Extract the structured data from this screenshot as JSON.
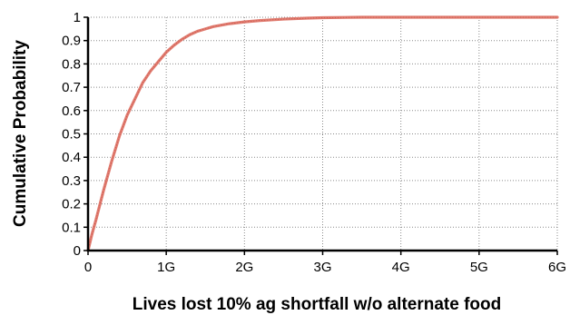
{
  "chart_data": {
    "type": "line",
    "title": "",
    "xlabel": "Lives lost 10% ag shortfall w/o alternate food",
    "ylabel": "Cumulative Probability",
    "xlim": [
      0,
      6000000000
    ],
    "ylim": [
      0,
      1
    ],
    "x_ticks": [
      {
        "value": 0,
        "label": "0"
      },
      {
        "value": 1000000000,
        "label": "1G"
      },
      {
        "value": 2000000000,
        "label": "2G"
      },
      {
        "value": 3000000000,
        "label": "3G"
      },
      {
        "value": 4000000000,
        "label": "4G"
      },
      {
        "value": 5000000000,
        "label": "5G"
      },
      {
        "value": 6000000000,
        "label": "6G"
      }
    ],
    "y_ticks": [
      {
        "value": 0,
        "label": "0"
      },
      {
        "value": 0.1,
        "label": "0.1"
      },
      {
        "value": 0.2,
        "label": "0.2"
      },
      {
        "value": 0.3,
        "label": "0.3"
      },
      {
        "value": 0.4,
        "label": "0.4"
      },
      {
        "value": 0.5,
        "label": "0.5"
      },
      {
        "value": 0.6,
        "label": "0.6"
      },
      {
        "value": 0.7,
        "label": "0.7"
      },
      {
        "value": 0.8,
        "label": "0.8"
      },
      {
        "value": 0.9,
        "label": "0.9"
      },
      {
        "value": 1,
        "label": "1"
      }
    ],
    "grid": true,
    "legend": "none",
    "series": [
      {
        "color": "#e07a6e",
        "x": [
          0,
          50000000,
          100000000,
          200000000,
          300000000,
          400000000,
          500000000,
          600000000,
          700000000,
          800000000,
          900000000,
          1000000000,
          1100000000,
          1200000000,
          1300000000,
          1400000000,
          1500000000,
          1600000000,
          1800000000,
          2000000000,
          2200000000,
          2500000000,
          2800000000,
          3000000000,
          3500000000,
          4000000000,
          5000000000,
          6000000000
        ],
        "y": [
          0,
          0.07,
          0.13,
          0.26,
          0.38,
          0.49,
          0.58,
          0.65,
          0.72,
          0.77,
          0.81,
          0.85,
          0.88,
          0.905,
          0.925,
          0.94,
          0.95,
          0.96,
          0.972,
          0.98,
          0.986,
          0.992,
          0.996,
          0.998,
          1,
          1,
          1,
          1
        ]
      }
    ]
  }
}
